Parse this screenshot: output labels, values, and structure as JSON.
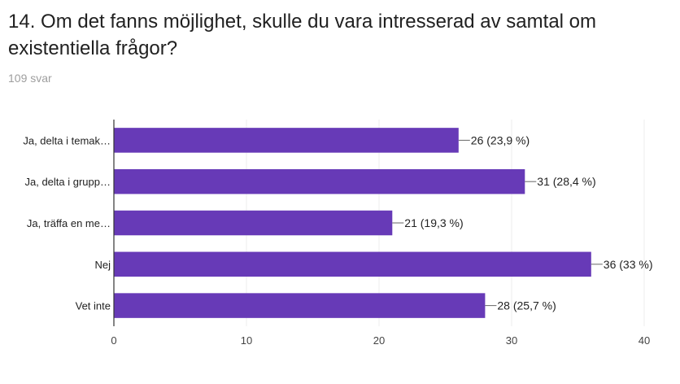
{
  "question": {
    "title": "14. Om det fanns möjlighet, skulle du vara intresserad av samtal om existentiella frågor?",
    "responses": "109 svar"
  },
  "colors": {
    "bar": "#673ab7",
    "grid": "#eeeeee",
    "axis": "#333333",
    "label": "#222222"
  },
  "chart_data": {
    "type": "bar",
    "orientation": "horizontal",
    "categories": [
      "Ja, delta i temak…",
      "Ja, delta i grupp…",
      "Ja, träffa en me…",
      "Nej",
      "Vet inte"
    ],
    "values": [
      26,
      31,
      21,
      36,
      28
    ],
    "data_labels": [
      "26 (23,9 %)",
      "31 (28,4 %)",
      "21 (19,3 %)",
      "36 (33 %)",
      "28 (25,7 %)"
    ],
    "xlim": [
      0,
      40
    ],
    "xticks": [
      0,
      10,
      20,
      30,
      40
    ],
    "grid": true,
    "legend": "none"
  }
}
